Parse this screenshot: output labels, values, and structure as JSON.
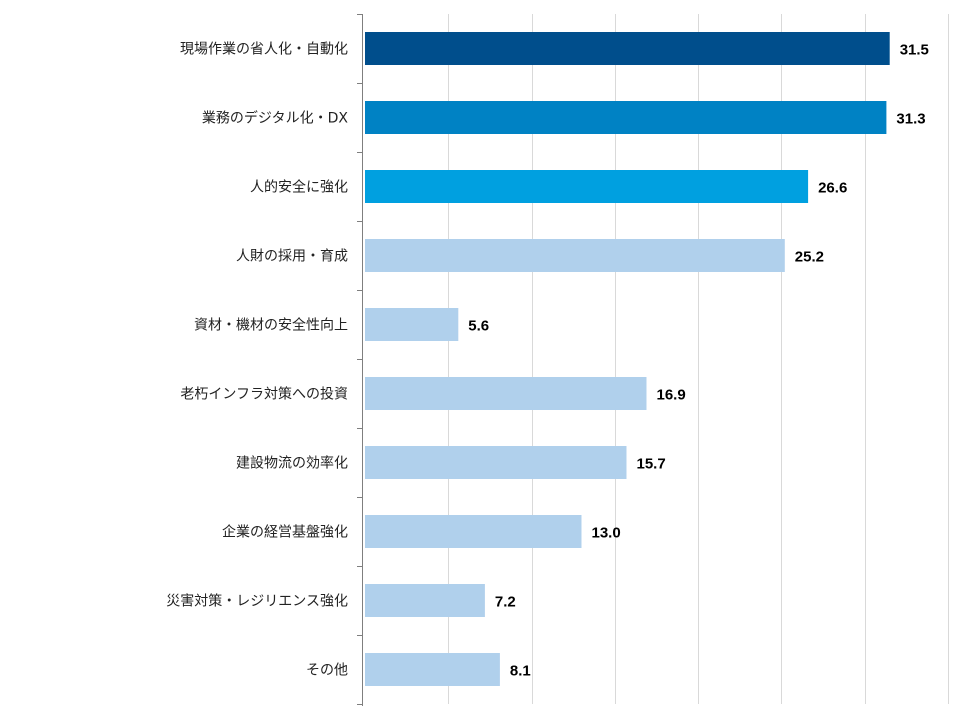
{
  "chart_data": {
    "type": "bar",
    "orientation": "horizontal",
    "title": "",
    "xlabel": "",
    "ylabel": "",
    "xlim": [
      0,
      35
    ],
    "grid": true,
    "categories": [
      "現場作業の省人化・自動化",
      "業務のデジタル化・DX",
      "人的安全に強化",
      "人財の採用・育成",
      "資材・機材の安全性向上",
      "老朽インフラ対策への投資",
      "建設物流の効率化",
      "企業の経営基盤強化",
      "災害対策・レジリエンス強化",
      "その他"
    ],
    "values": [
      31.5,
      31.3,
      26.6,
      25.2,
      5.6,
      16.9,
      15.7,
      13.0,
      7.2,
      8.1
    ],
    "value_labels": [
      "31.5",
      "31.3",
      "26.6",
      "25.2",
      "5.6",
      "16.9",
      "15.7",
      "13.0",
      "7.2",
      "8.1"
    ],
    "bar_colors": [
      "#004e8c",
      "#0082c4",
      "#00a0e0",
      "#b0d0ec",
      "#b0d0ec",
      "#b0d0ec",
      "#b0d0ec",
      "#b0d0ec",
      "#b0d0ec",
      "#b0d0ec"
    ],
    "grid_color": "#d9d9d9",
    "axis_color": "#7f7f7f"
  }
}
